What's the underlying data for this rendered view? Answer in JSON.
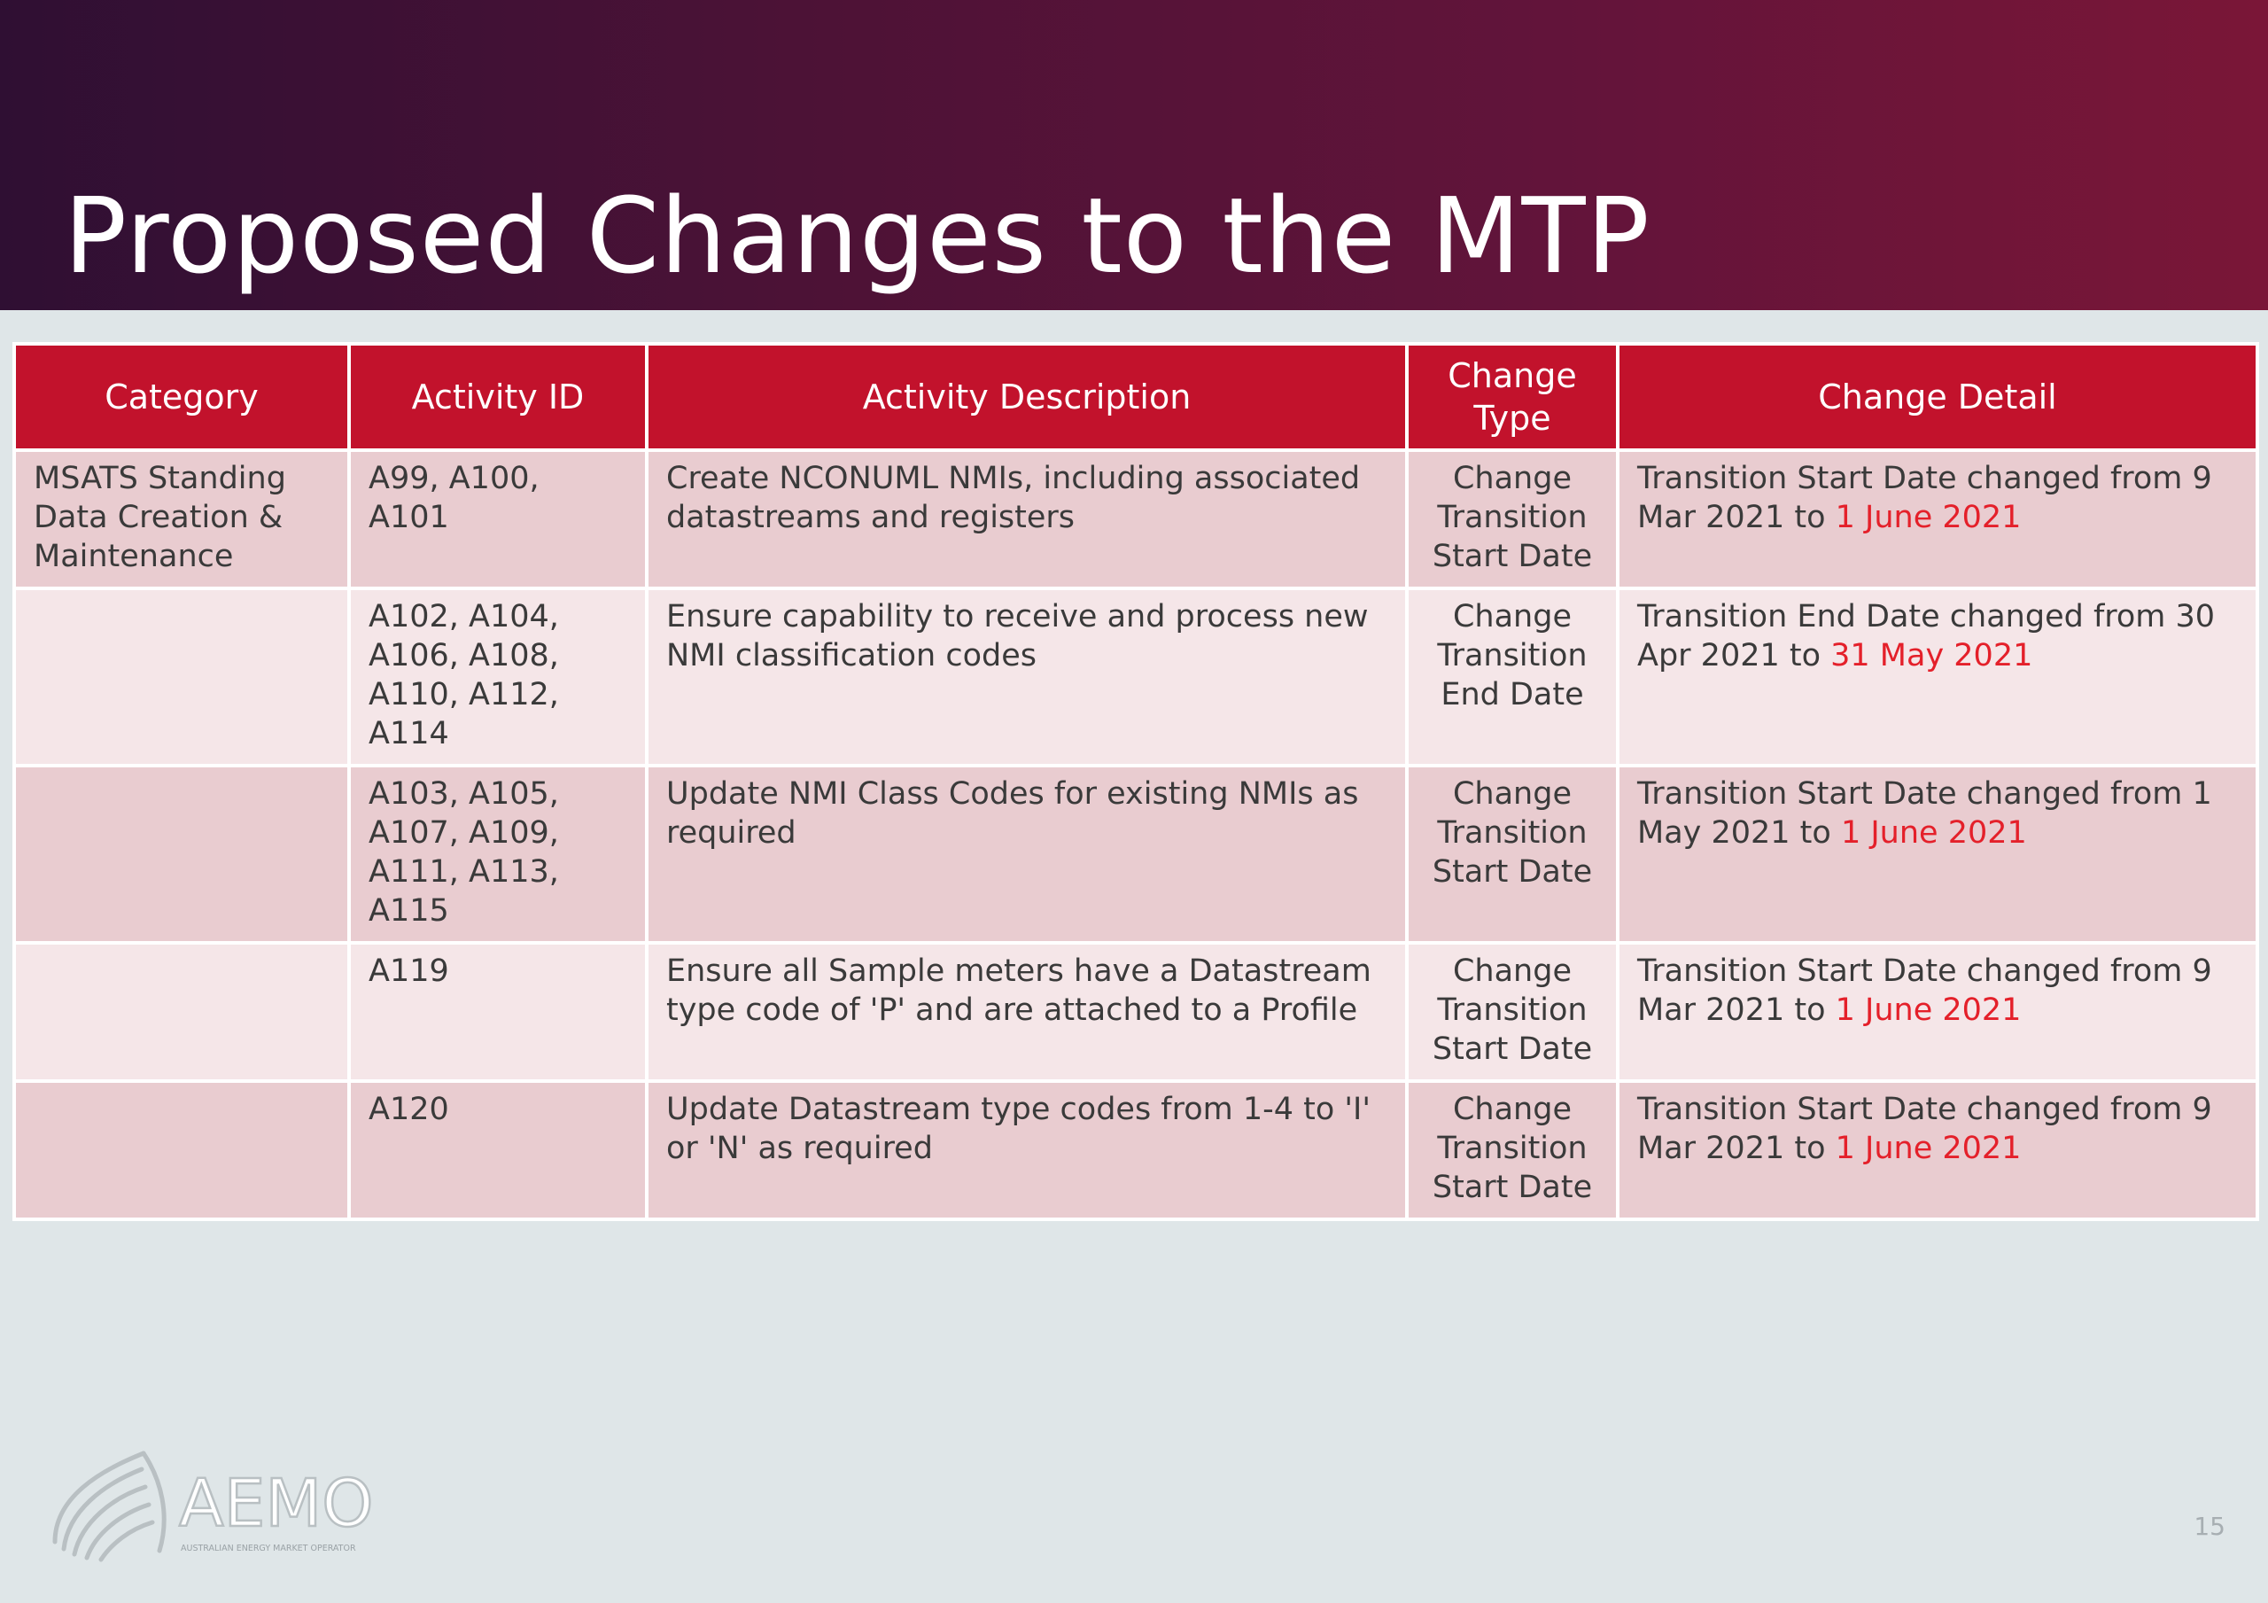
{
  "slide": {
    "title": "Proposed Changes to the MTP",
    "page_number": "15"
  },
  "table": {
    "headers": [
      "Category",
      "Activity ID",
      "Activity Description",
      "Change Type",
      "Change Detail"
    ],
    "rows": [
      {
        "category": "MSATS Standing Data Creation & Maintenance",
        "activity_id": "A99, A100, A101",
        "description": "Create NCONUML NMIs, including associated datastreams and registers",
        "change_type": "Change Transition Start Date",
        "detail_prefix": "Transition Start Date changed from 9 Mar 2021 to ",
        "detail_highlight": "1 June 2021"
      },
      {
        "category": "",
        "activity_id": "A102, A104, A106, A108, A110, A112, A114",
        "description": "Ensure capability to receive and process new NMI classification codes",
        "change_type": "Change Transition End Date",
        "detail_prefix": "Transition End Date changed from 30 Apr 2021 to ",
        "detail_highlight": "31 May 2021"
      },
      {
        "category": "",
        "activity_id": "A103, A105, A107, A109, A111, A113, A115",
        "description": "Update NMI Class Codes for existing NMIs as required",
        "change_type": "Change Transition Start Date",
        "detail_prefix": "Transition Start Date changed from 1 May 2021 to ",
        "detail_highlight": "1 June 2021"
      },
      {
        "category": "",
        "activity_id": "A119",
        "description": "Ensure all Sample meters have a Datastream type code of 'P' and are attached to a Profile",
        "change_type": "Change Transition Start Date",
        "detail_prefix": "Transition Start Date changed from 9 Mar 2021 to ",
        "detail_highlight": "1 June 2021"
      },
      {
        "category": "",
        "activity_id": "A120",
        "description": "Update Datastream type codes from 1-4 to 'I' or 'N' as required",
        "change_type": "Change Transition Start Date",
        "detail_prefix": "Transition Start Date changed from 9 Mar 2021 to ",
        "detail_highlight": "1 June 2021"
      }
    ]
  },
  "logo": {
    "name": "AEMO",
    "tagline": "AUSTRALIAN ENERGY MARKET OPERATOR"
  },
  "colors": {
    "header_red": "#c2122c",
    "highlight_red": "#e4202a",
    "row_dark": "#e9ccd0",
    "row_light": "#f5e6e8"
  }
}
